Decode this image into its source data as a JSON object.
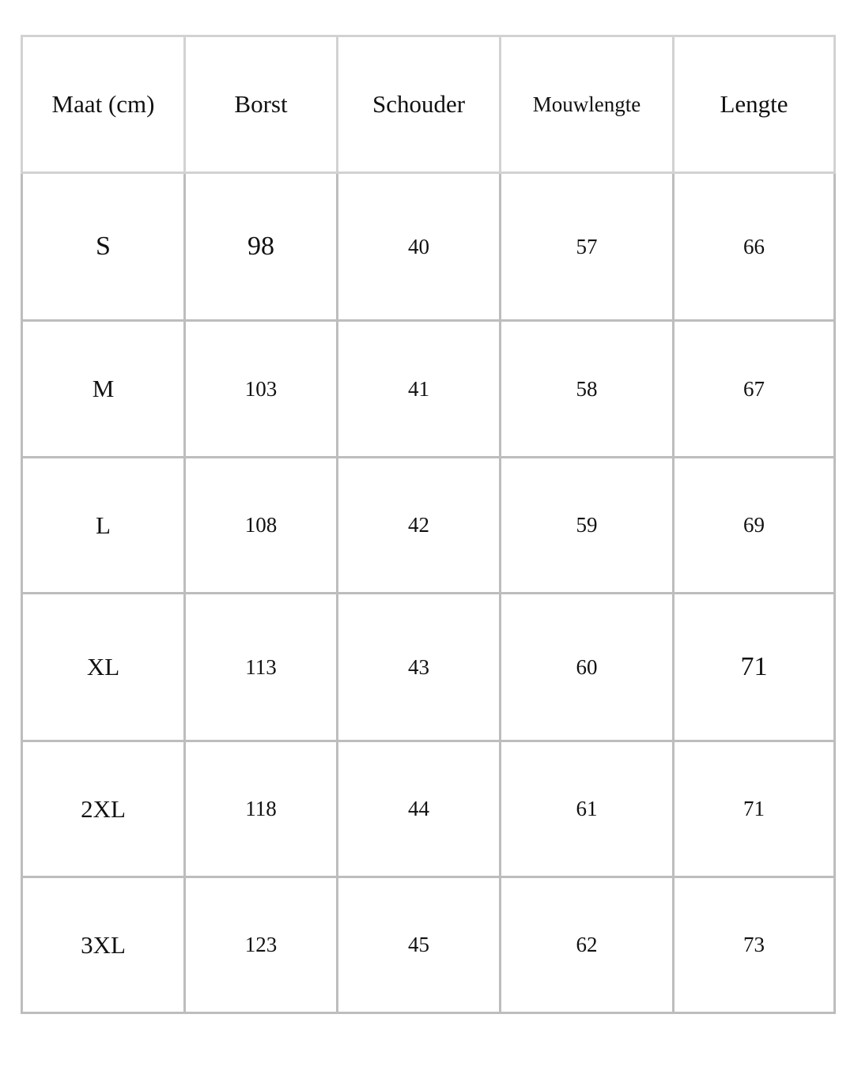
{
  "table": {
    "headers": [
      "Maat (cm)",
      "Borst",
      "Schouder",
      "Mouwlengte",
      "Lengte"
    ],
    "rows": [
      [
        "S",
        "98",
        "40",
        "57",
        "66"
      ],
      [
        "M",
        "103",
        "41",
        "58",
        "67"
      ],
      [
        "L",
        "108",
        "42",
        "59",
        "69"
      ],
      [
        "XL",
        "113",
        "43",
        "60",
        "71"
      ],
      [
        "2XL",
        "118",
        "44",
        "61",
        "71"
      ],
      [
        "3XL",
        "123",
        "45",
        "62",
        "73"
      ]
    ]
  },
  "colors": {
    "border": "#bdbdbd",
    "text": "#111111",
    "background": "#ffffff"
  }
}
